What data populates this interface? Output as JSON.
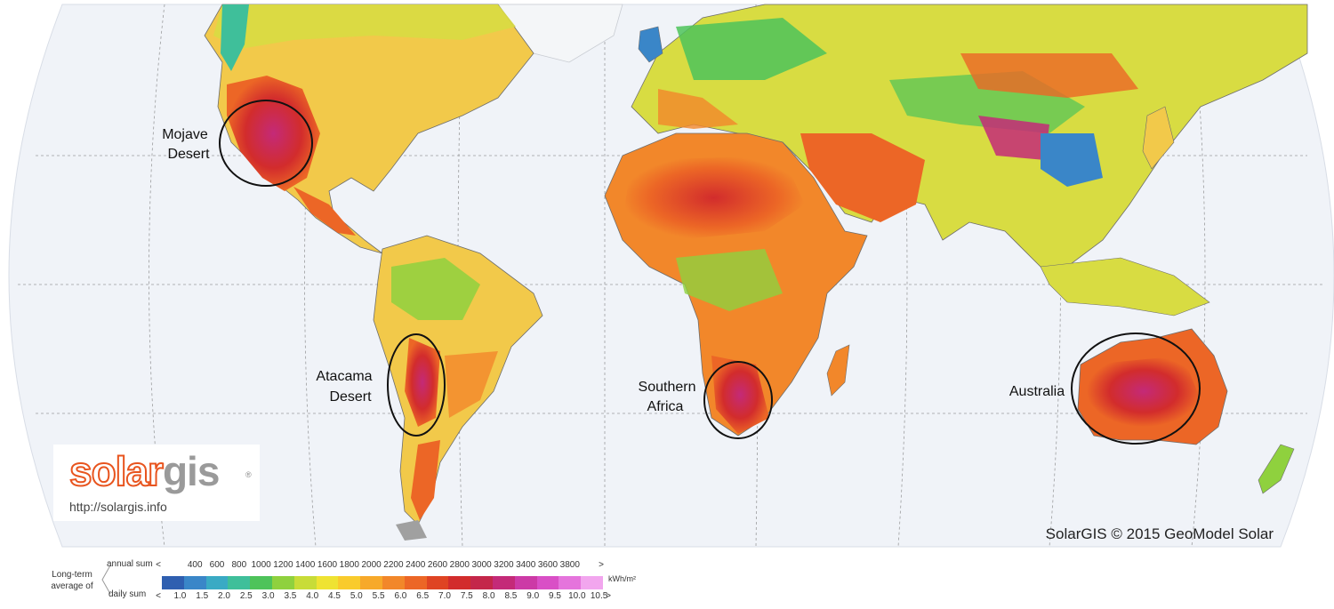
{
  "regions": [
    {
      "label": "Mojave Desert",
      "lines": [
        "Mojave",
        "Desert"
      ]
    },
    {
      "label": "Atacama Desert",
      "lines": [
        "Atacama",
        "Desert"
      ]
    },
    {
      "label": "Southern Africa",
      "lines": [
        "Southern",
        "Africa"
      ]
    },
    {
      "label": "Australia",
      "lines": [
        "Australia"
      ]
    }
  ],
  "copyright": "SolarGIS © 2015 GeoModel Solar",
  "logo": {
    "solar": "solar",
    "gis": "gis",
    "reg": "®",
    "url": "http://solargis.info"
  },
  "legend": {
    "caption_line1": "Long-term",
    "caption_line2": "average of",
    "annual_label": "annual sum",
    "daily_label": "daily sum",
    "unit": "kWh/m²",
    "annual_ticks": [
      "<",
      "400",
      "600",
      "800",
      "1000",
      "1200",
      "1400",
      "1600",
      "1800",
      "2000",
      "2200",
      "2400",
      "2600",
      "2800",
      "3000",
      "3200",
      "3400",
      "3600",
      "3800",
      ">"
    ],
    "daily_ticks": [
      "<",
      "1.0",
      "1.5",
      "2.0",
      "2.5",
      "3.0",
      "3.5",
      "4.0",
      "4.5",
      "5.0",
      "5.5",
      "6.0",
      "6.5",
      "7.0",
      "7.5",
      "8.0",
      "8.5",
      "9.0",
      "9.5",
      "10.0",
      "10.5",
      ">"
    ],
    "colors": [
      "#2f5fb0",
      "#3a86c8",
      "#3aaac4",
      "#3fbf9a",
      "#4ec35a",
      "#8fd13e",
      "#c8dc38",
      "#efe332",
      "#f9cb2c",
      "#f7a92a",
      "#f2872a",
      "#ec6626",
      "#df4423",
      "#d22c2c",
      "#c4264a",
      "#c42a78",
      "#cc3aa6",
      "#d94fc6",
      "#e574dc",
      "#f2a6ee"
    ]
  }
}
